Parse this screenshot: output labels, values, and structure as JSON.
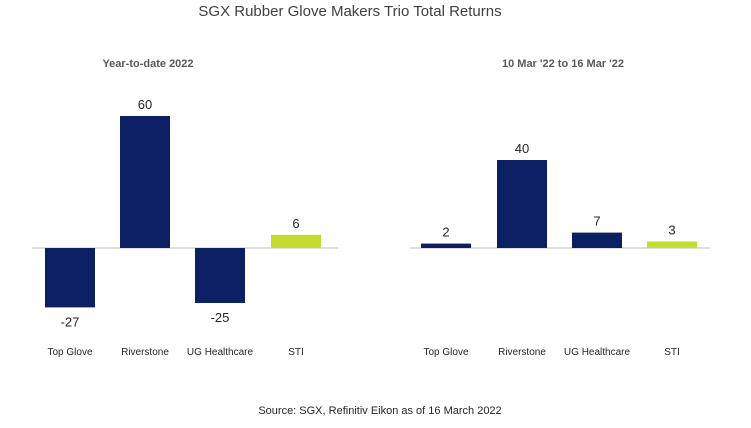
{
  "chart_data": {
    "type": "bar",
    "title": "SGX Rubber Glove Makers Trio Total Returns",
    "source": "Source: SGX, Refinitiv Eikon as of 16 March 2022",
    "colors": {
      "primary": "#0c1f63",
      "highlight": "#c3dc2f",
      "axis": "#bfbfbf"
    },
    "panels": [
      {
        "subtitle": "Year-to-date 2022",
        "categories": [
          "Top Glove",
          "Riverstone",
          "UG Healthcare",
          "STI"
        ],
        "values": [
          -27,
          60,
          -25,
          6
        ],
        "data_labels": [
          "-27",
          "60",
          "-25",
          "6"
        ],
        "highlight_index": 3
      },
      {
        "subtitle": "10 Mar '22 to 16 Mar '22",
        "categories": [
          "Top Glove",
          "Riverstone",
          "UG Healthcare",
          "STI"
        ],
        "values": [
          2,
          40,
          7,
          3
        ],
        "data_labels": [
          "2",
          "40",
          "7",
          "3"
        ],
        "highlight_index": 3
      }
    ],
    "grid": false,
    "legend": "none"
  }
}
